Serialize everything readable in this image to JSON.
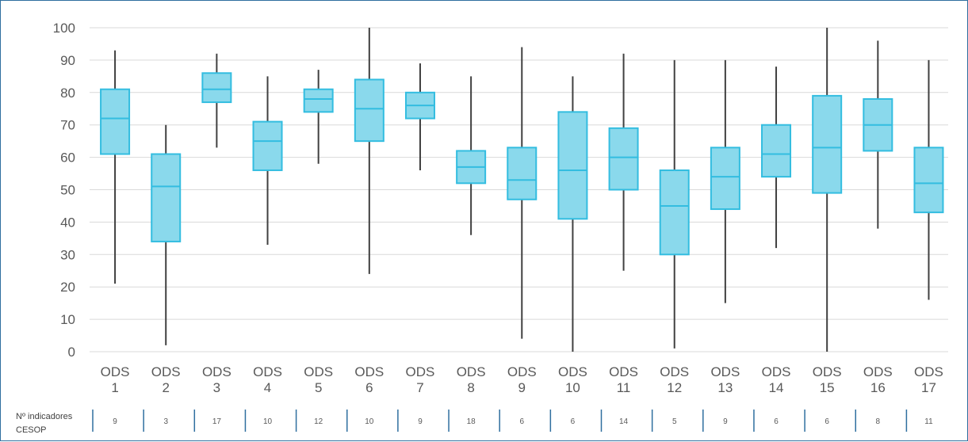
{
  "chart_data": {
    "type": "box",
    "ylim": [
      0,
      100
    ],
    "yticks": [
      0,
      10,
      20,
      30,
      40,
      50,
      60,
      70,
      80,
      90,
      100
    ],
    "grid": true,
    "colors": {
      "box_fill": "#8ad9ec",
      "box_stroke": "#33bde0",
      "whisker": "#404040",
      "grid": "#d9d9d9"
    },
    "categories": [
      {
        "line1": "ODS",
        "line2": "1"
      },
      {
        "line1": "ODS",
        "line2": "2"
      },
      {
        "line1": "ODS",
        "line2": "3"
      },
      {
        "line1": "ODS",
        "line2": "4"
      },
      {
        "line1": "ODS",
        "line2": "5"
      },
      {
        "line1": "ODS",
        "line2": "6"
      },
      {
        "line1": "ODS",
        "line2": "7"
      },
      {
        "line1": "ODS",
        "line2": "8"
      },
      {
        "line1": "ODS",
        "line2": "9"
      },
      {
        "line1": "ODS",
        "line2": "10"
      },
      {
        "line1": "ODS",
        "line2": "11"
      },
      {
        "line1": "ODS",
        "line2": "12"
      },
      {
        "line1": "ODS",
        "line2": "13"
      },
      {
        "line1": "ODS",
        "line2": "14"
      },
      {
        "line1": "ODS",
        "line2": "15"
      },
      {
        "line1": "ODS",
        "line2": "16"
      },
      {
        "line1": "ODS",
        "line2": "17"
      }
    ],
    "boxes": [
      {
        "min": 21,
        "q1": 61,
        "median": 72,
        "q3": 81,
        "max": 93
      },
      {
        "min": 2,
        "q1": 34,
        "median": 51,
        "q3": 61,
        "max": 70
      },
      {
        "min": 63,
        "q1": 77,
        "median": 81,
        "q3": 86,
        "max": 92
      },
      {
        "min": 33,
        "q1": 56,
        "median": 65,
        "q3": 71,
        "max": 85
      },
      {
        "min": 58,
        "q1": 74,
        "median": 78,
        "q3": 81,
        "max": 87
      },
      {
        "min": 24,
        "q1": 65,
        "median": 75,
        "q3": 84,
        "max": 100
      },
      {
        "min": 56,
        "q1": 72,
        "median": 76,
        "q3": 80,
        "max": 89
      },
      {
        "min": 36,
        "q1": 52,
        "median": 57,
        "q3": 62,
        "max": 85
      },
      {
        "min": 4,
        "q1": 47,
        "median": 53,
        "q3": 63,
        "max": 94
      },
      {
        "min": 0,
        "q1": 41,
        "median": 56,
        "q3": 74,
        "max": 85
      },
      {
        "min": 25,
        "q1": 50,
        "median": 60,
        "q3": 69,
        "max": 92
      },
      {
        "min": 1,
        "q1": 30,
        "median": 45,
        "q3": 56,
        "max": 90
      },
      {
        "min": 15,
        "q1": 44,
        "median": 54,
        "q3": 63,
        "max": 90
      },
      {
        "min": 32,
        "q1": 54,
        "median": 61,
        "q3": 70,
        "max": 88
      },
      {
        "min": 0,
        "q1": 49,
        "median": 63,
        "q3": 79,
        "max": 100
      },
      {
        "min": 38,
        "q1": 62,
        "median": 70,
        "q3": 78,
        "max": 96
      },
      {
        "min": 16,
        "q1": 43,
        "median": 52,
        "q3": 63,
        "max": 90
      }
    ],
    "footer_label_line1": "Nº indicadores",
    "footer_label_line2": "CESOP",
    "indicator_counts": [
      "9",
      "3",
      "17",
      "10",
      "12",
      "10",
      "9",
      "18",
      "6",
      "6",
      "14",
      "5",
      "9",
      "6",
      "6",
      "8",
      "11"
    ]
  }
}
